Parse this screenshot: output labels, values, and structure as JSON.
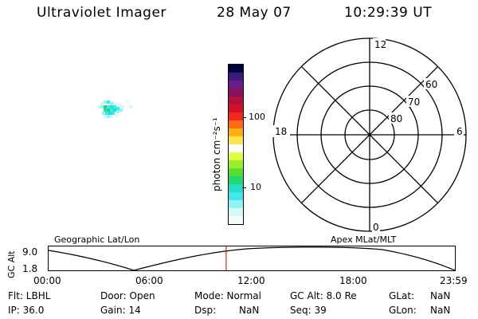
{
  "header": {
    "instrument": "Ultraviolet Imager",
    "date": "28 May 07",
    "time": "10:29:39 UT"
  },
  "colorbar": {
    "unit_label": "photon cm⁻²s⁻¹",
    "tick_labels": [
      "100",
      "10"
    ],
    "colors_top_to_bottom": [
      "#000044",
      "#3c1c78",
      "#6a1a8a",
      "#8a1060",
      "#b0103a",
      "#d4102a",
      "#f0281e",
      "#ff6a10",
      "#ffb010",
      "#ffe24a",
      "#ffffff",
      "#dfff40",
      "#9cf028",
      "#55e030",
      "#22d870",
      "#22e0c8",
      "#40e8ec",
      "#90f4f4",
      "#d4f8f8",
      "#f4fcfc"
    ]
  },
  "polar_plot": {
    "mlt_labels": {
      "top": "12",
      "left": "18",
      "right": "6",
      "bottom": "0"
    },
    "lat_labels": [
      "60",
      "70",
      "80"
    ]
  },
  "timeline": {
    "left_title": "Geographic Lat/Lon",
    "right_title": "Apex  MLat/MLT",
    "y_axis_label": "GC Alt",
    "y_ticks": [
      "9.0",
      "1.8"
    ],
    "x_ticks": [
      "00:00",
      "06:00",
      "12:00",
      "18:00",
      "23:59"
    ],
    "current_time_fraction": 0.437,
    "marker_color": "#cc0000"
  },
  "status": {
    "row1": {
      "filter": "Flt: LBHL",
      "door": "Door: Open",
      "mode": "Mode: Normal",
      "gc_alt": "GC Alt: 8.0 Re",
      "glat_label": "GLat:",
      "glat_value": "NaN"
    },
    "row2": {
      "ip": "IP: 36.0",
      "gain": "Gain: 14",
      "dsp_label": "Dsp:",
      "dsp_value": "NaN",
      "seq": "Seq: 39",
      "glon_label": "GLon:",
      "glon_value": "NaN"
    }
  }
}
